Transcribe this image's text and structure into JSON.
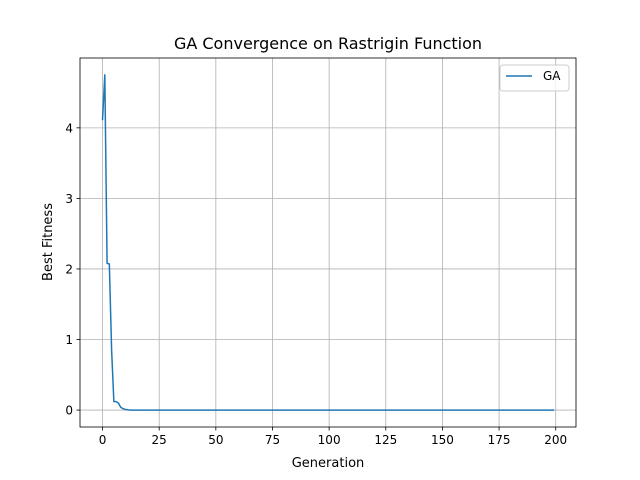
{
  "chart_data": {
    "type": "line",
    "title": "GA Convergence on Rastrigin Function",
    "xlabel": "Generation",
    "ylabel": "Best Fitness",
    "xlim": [
      -9.95,
      208.95
    ],
    "ylim": [
      -0.24,
      4.99
    ],
    "x_ticks": [
      0,
      25,
      50,
      75,
      100,
      125,
      150,
      175,
      200
    ],
    "y_ticks": [
      0,
      1,
      2,
      3,
      4
    ],
    "grid": true,
    "legend_position": "top-right",
    "colors": {
      "series": "#1f77b4",
      "grid": "#b0b0b0",
      "axes": "#000000"
    },
    "series": [
      {
        "name": "GA",
        "x": [
          0,
          1,
          2,
          3,
          4,
          5,
          6,
          7,
          8,
          9,
          10,
          11,
          12,
          15,
          20,
          30,
          50,
          75,
          100,
          125,
          150,
          175,
          199
        ],
        "y": [
          4.12,
          4.75,
          2.08,
          2.07,
          0.85,
          0.12,
          0.12,
          0.1,
          0.04,
          0.02,
          0.01,
          0.005,
          0.0,
          0.0,
          0.0,
          0.0,
          0.0,
          0.0,
          0.0,
          0.0,
          0.0,
          0.0,
          0.0
        ]
      }
    ]
  }
}
